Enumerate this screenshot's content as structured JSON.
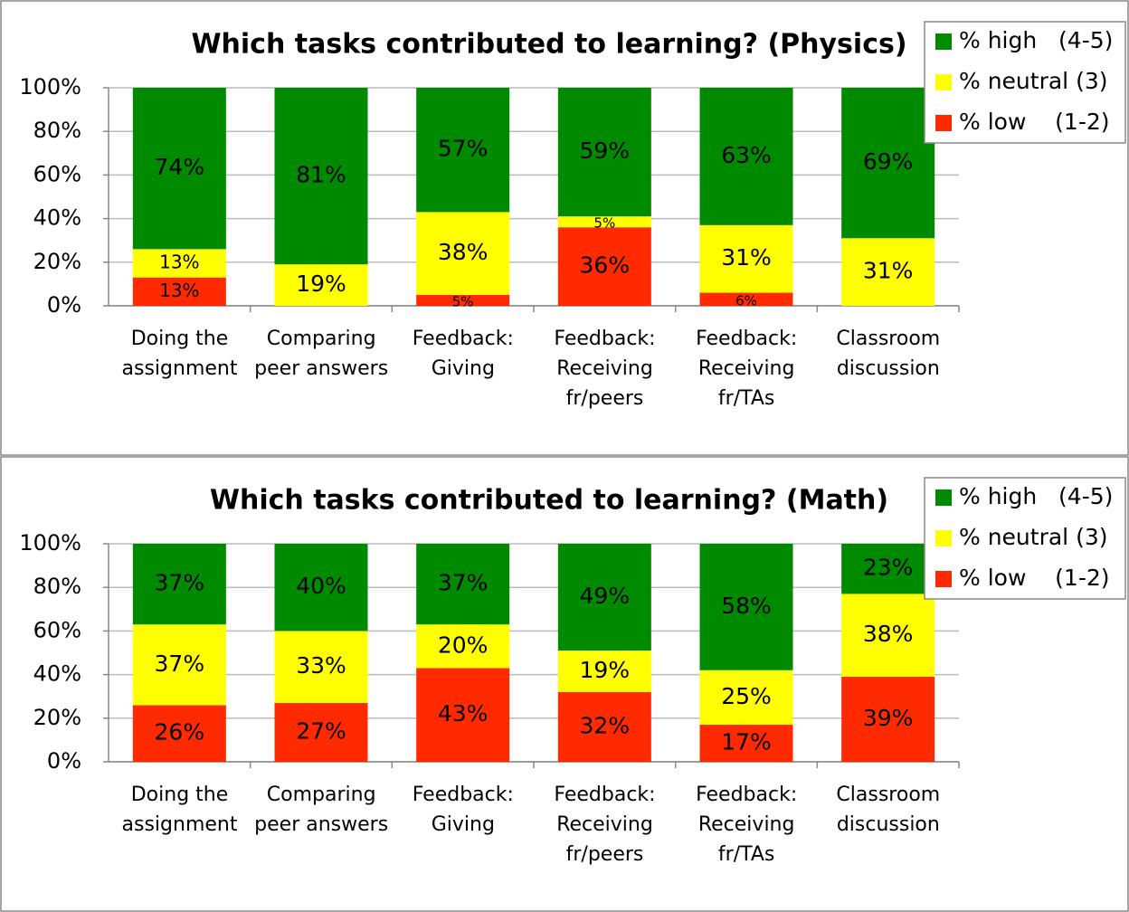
{
  "chart_data": [
    {
      "type": "stacked_bar",
      "title": "Which tasks contributed to learning? (Physics)",
      "categories": [
        "Doing the\nassignment",
        "Comparing\npeer answers",
        "Feedback:\nGiving",
        "Feedback:\nReceiving\nfr/peers",
        "Feedback:\nReceiving\nfr/TAs",
        "Classroom\ndiscussion"
      ],
      "series": [
        {
          "name": "% low    (1-2)",
          "color": "#ff2a00",
          "values": [
            13,
            0,
            5,
            36,
            6,
            0
          ],
          "value_labels": [
            "13%",
            null,
            "5%",
            "36%",
            "6%",
            null
          ]
        },
        {
          "name": "% neutral (3)",
          "color": "#ffff00",
          "values": [
            13,
            19,
            38,
            5,
            31,
            31
          ],
          "value_labels": [
            "13%",
            "19%",
            "38%",
            "5%",
            "31%",
            "31%"
          ]
        },
        {
          "name": "% high   (4-5)",
          "color": "#008a00",
          "values": [
            74,
            81,
            57,
            59,
            63,
            69
          ],
          "value_labels": [
            "74%",
            "81%",
            "57%",
            "59%",
            "63%",
            "69%"
          ]
        }
      ],
      "ylim": [
        0,
        100
      ],
      "yticks": [
        {
          "value": 0,
          "label": "0%"
        },
        {
          "value": 20,
          "label": "20%"
        },
        {
          "value": 40,
          "label": "40%"
        },
        {
          "value": 60,
          "label": "60%"
        },
        {
          "value": 80,
          "label": "80%"
        },
        {
          "value": 100,
          "label": "100%"
        }
      ],
      "grid": true,
      "legend": "top-right"
    },
    {
      "type": "stacked_bar",
      "title": "Which tasks contributed to learning? (Math)",
      "categories": [
        "Doing the\nassignment",
        "Comparing\npeer answers",
        "Feedback:\nGiving",
        "Feedback:\nReceiving\nfr/peers",
        "Feedback:\nReceiving\nfr/TAs",
        "Classroom\ndiscussion"
      ],
      "series": [
        {
          "name": "% low    (1-2)",
          "color": "#ff2a00",
          "values": [
            26,
            27,
            43,
            32,
            17,
            39
          ],
          "value_labels": [
            "26%",
            "27%",
            "43%",
            "32%",
            "17%",
            "39%"
          ]
        },
        {
          "name": "% neutral (3)",
          "color": "#ffff00",
          "values": [
            37,
            33,
            20,
            19,
            25,
            38
          ],
          "value_labels": [
            "37%",
            "33%",
            "20%",
            "19%",
            "25%",
            "38%"
          ]
        },
        {
          "name": "% high   (4-5)",
          "color": "#008a00",
          "values": [
            37,
            40,
            37,
            49,
            58,
            23
          ],
          "value_labels": [
            "37%",
            "40%",
            "37%",
            "49%",
            "58%",
            "23%"
          ]
        }
      ],
      "ylim": [
        0,
        100
      ],
      "yticks": [
        {
          "value": 0,
          "label": "0%"
        },
        {
          "value": 20,
          "label": "20%"
        },
        {
          "value": 40,
          "label": "40%"
        },
        {
          "value": 60,
          "label": "60%"
        },
        {
          "value": 80,
          "label": "80%"
        },
        {
          "value": 100,
          "label": "100%"
        }
      ],
      "grid": true,
      "legend": "top-right"
    }
  ]
}
